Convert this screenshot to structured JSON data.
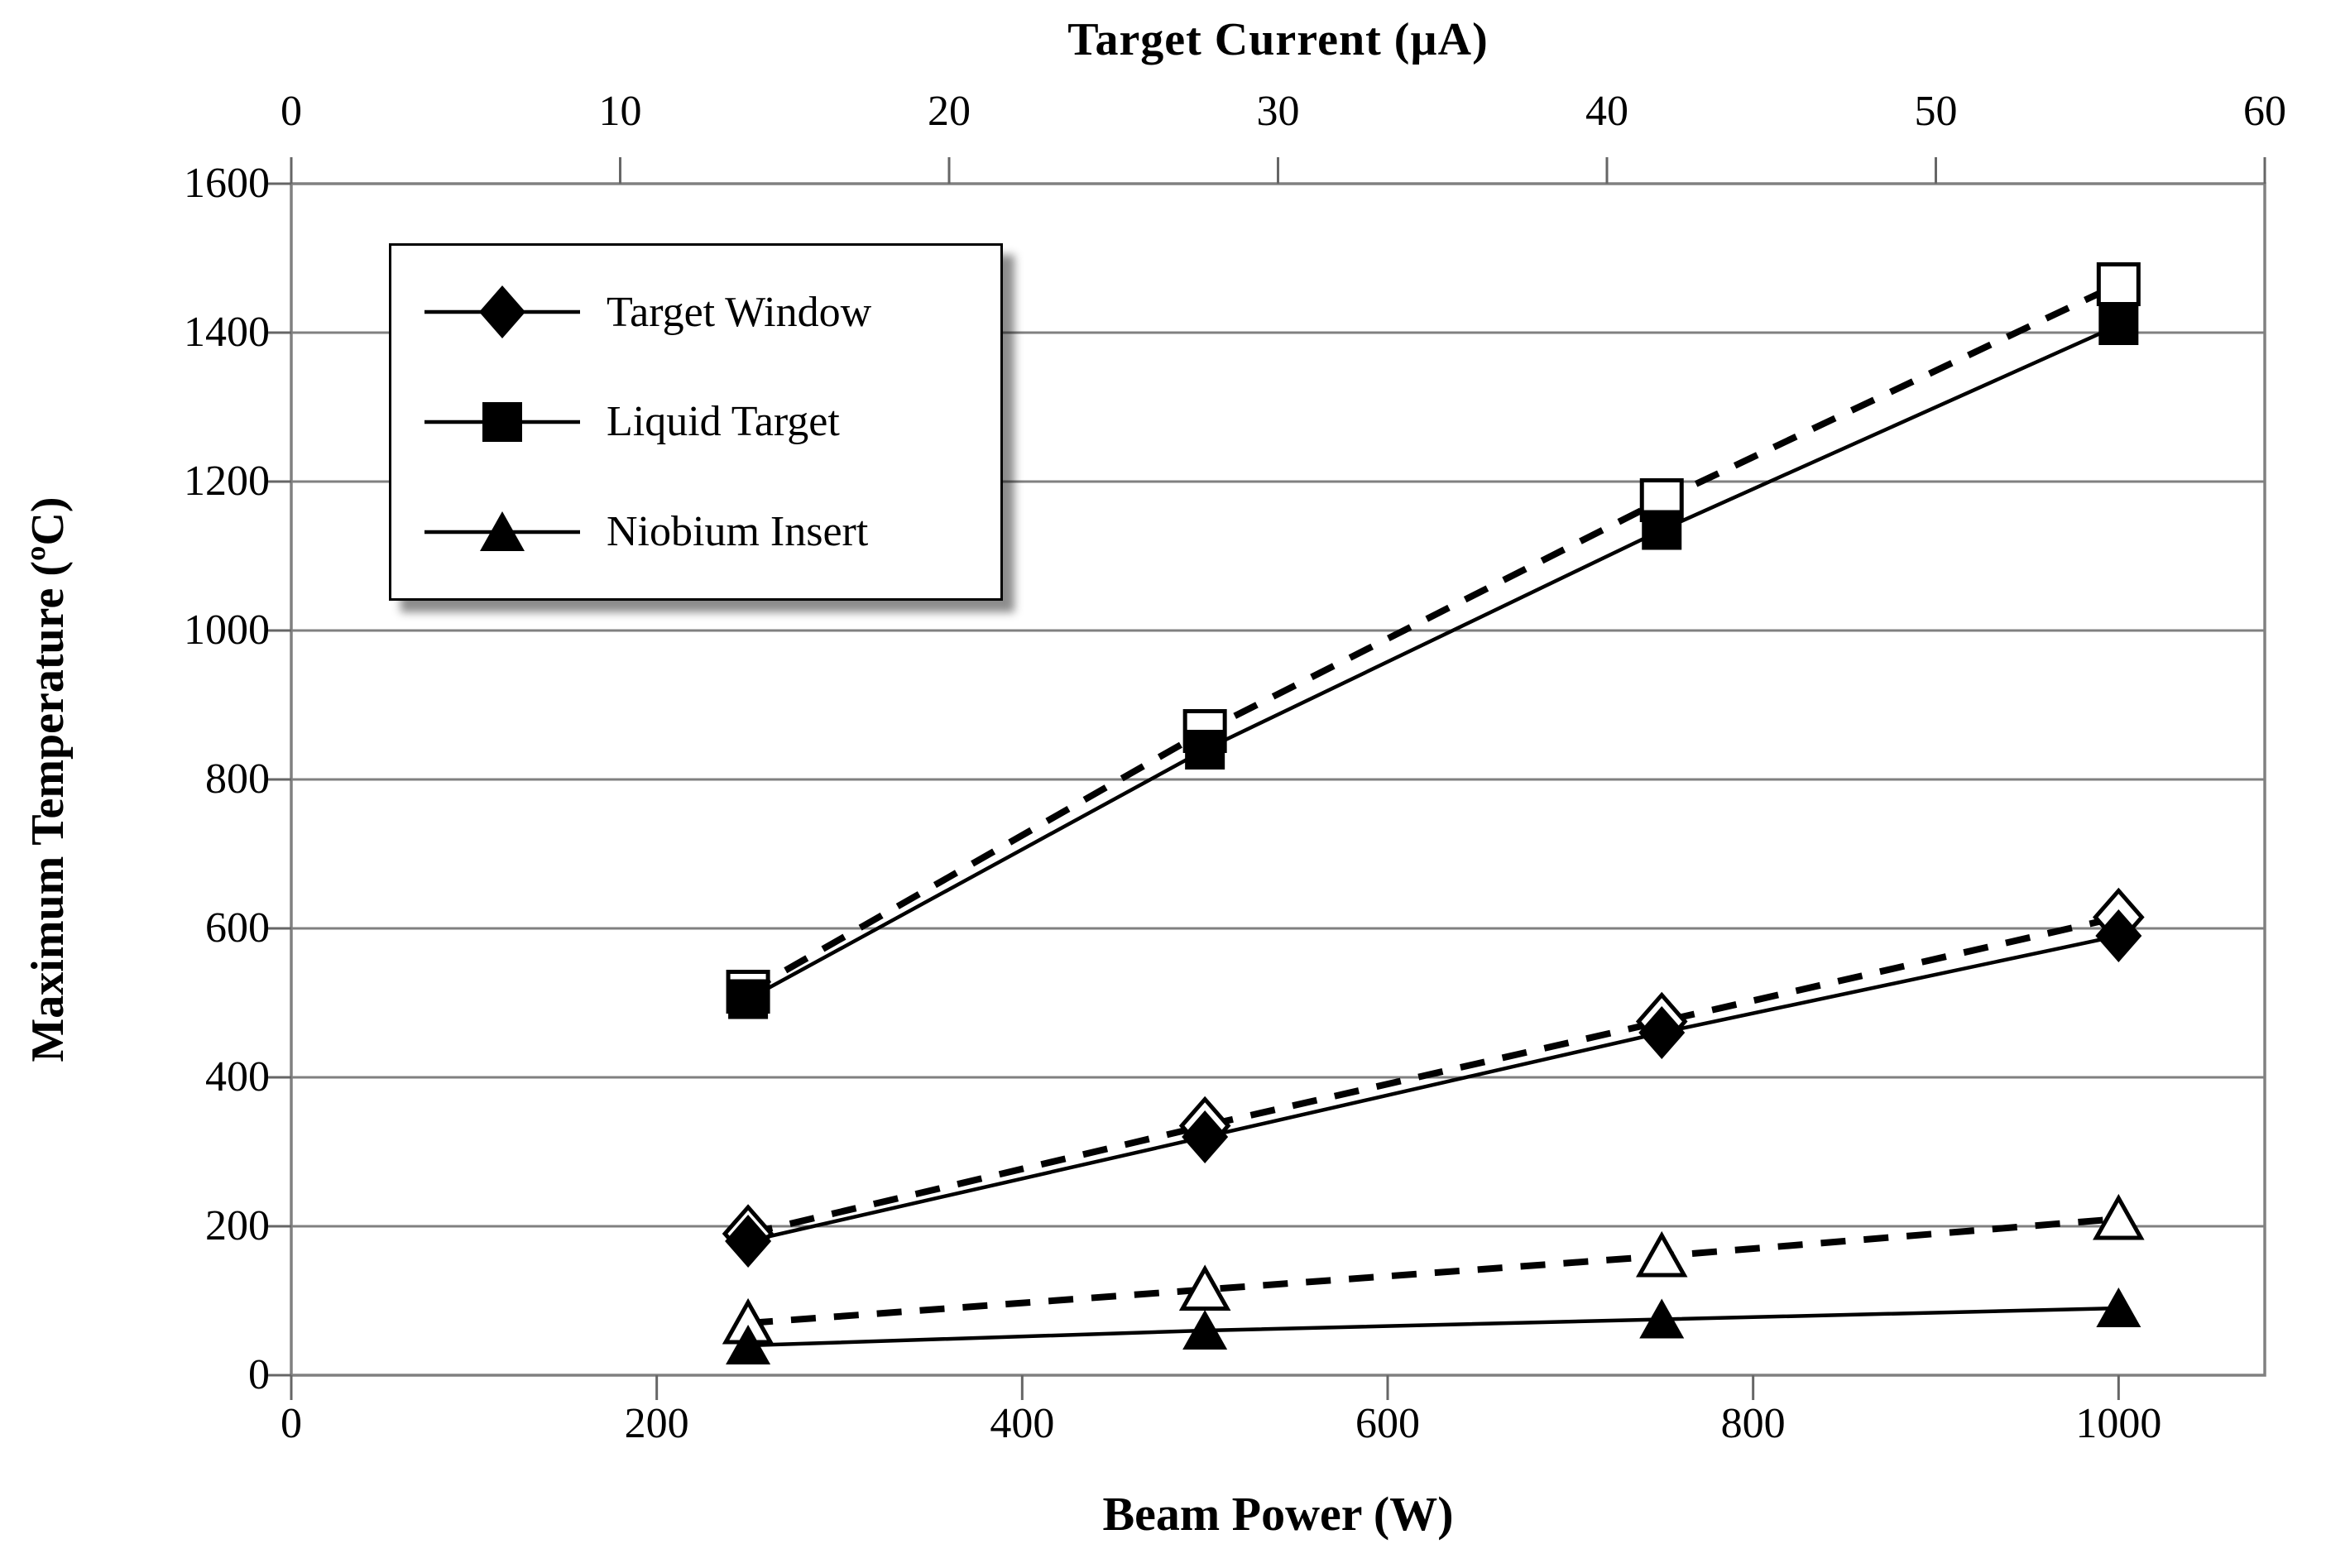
{
  "page": {
    "background": "#ffffff"
  },
  "chart_data": {
    "type": "line",
    "title": "",
    "top_axis": {
      "title": "Target Current (µA)",
      "range": [
        0,
        60
      ],
      "ticks": [
        0,
        10,
        20,
        30,
        40,
        50,
        60
      ]
    },
    "bottom_axis": {
      "title": "Beam Power (W)",
      "range": [
        0,
        1080
      ],
      "ticks": [
        0,
        200,
        400,
        600,
        800,
        1000
      ]
    },
    "y_axis": {
      "title": "Maximum Temperature (ºC)",
      "range": [
        0,
        1600
      ],
      "ticks": [
        1600,
        1400,
        1200,
        1000,
        800,
        600,
        400,
        200,
        0
      ]
    },
    "grid": "horizontal-only",
    "x": [
      250,
      500,
      750,
      1000
    ],
    "series": [
      {
        "name": "Liquid Target (dashed)",
        "line": "dashed",
        "marker": "square-open",
        "values": [
          515,
          865,
          1175,
          1465
        ]
      },
      {
        "name": "Target Window (dashed)",
        "line": "dashed",
        "marker": "diamond-open",
        "values": [
          190,
          335,
          475,
          615
        ]
      },
      {
        "name": "Niobium Insert (dashed)",
        "line": "dashed",
        "marker": "triangle-open",
        "values": [
          70,
          115,
          160,
          210
        ]
      },
      {
        "name": "Liquid Target",
        "line": "solid",
        "marker": "square-filled",
        "values": [
          505,
          840,
          1135,
          1410
        ]
      },
      {
        "name": "Target Window",
        "line": "solid",
        "marker": "diamond-filled",
        "values": [
          180,
          320,
          460,
          590
        ]
      },
      {
        "name": "Niobium Insert",
        "line": "solid",
        "marker": "triangle-filled",
        "values": [
          40,
          60,
          75,
          90
        ]
      }
    ],
    "legend": {
      "position": "top-left-inside",
      "entries": [
        {
          "label": "Target Window",
          "marker": "diamond-filled"
        },
        {
          "label": "Liquid Target",
          "marker": "square-filled"
        },
        {
          "label": "Niobium Insert",
          "marker": "triangle-filled"
        }
      ]
    },
    "colors": {
      "series": "#000000",
      "grid": "#808080",
      "frame": "#808080",
      "tick": "#666666",
      "background": "#ffffff"
    }
  }
}
